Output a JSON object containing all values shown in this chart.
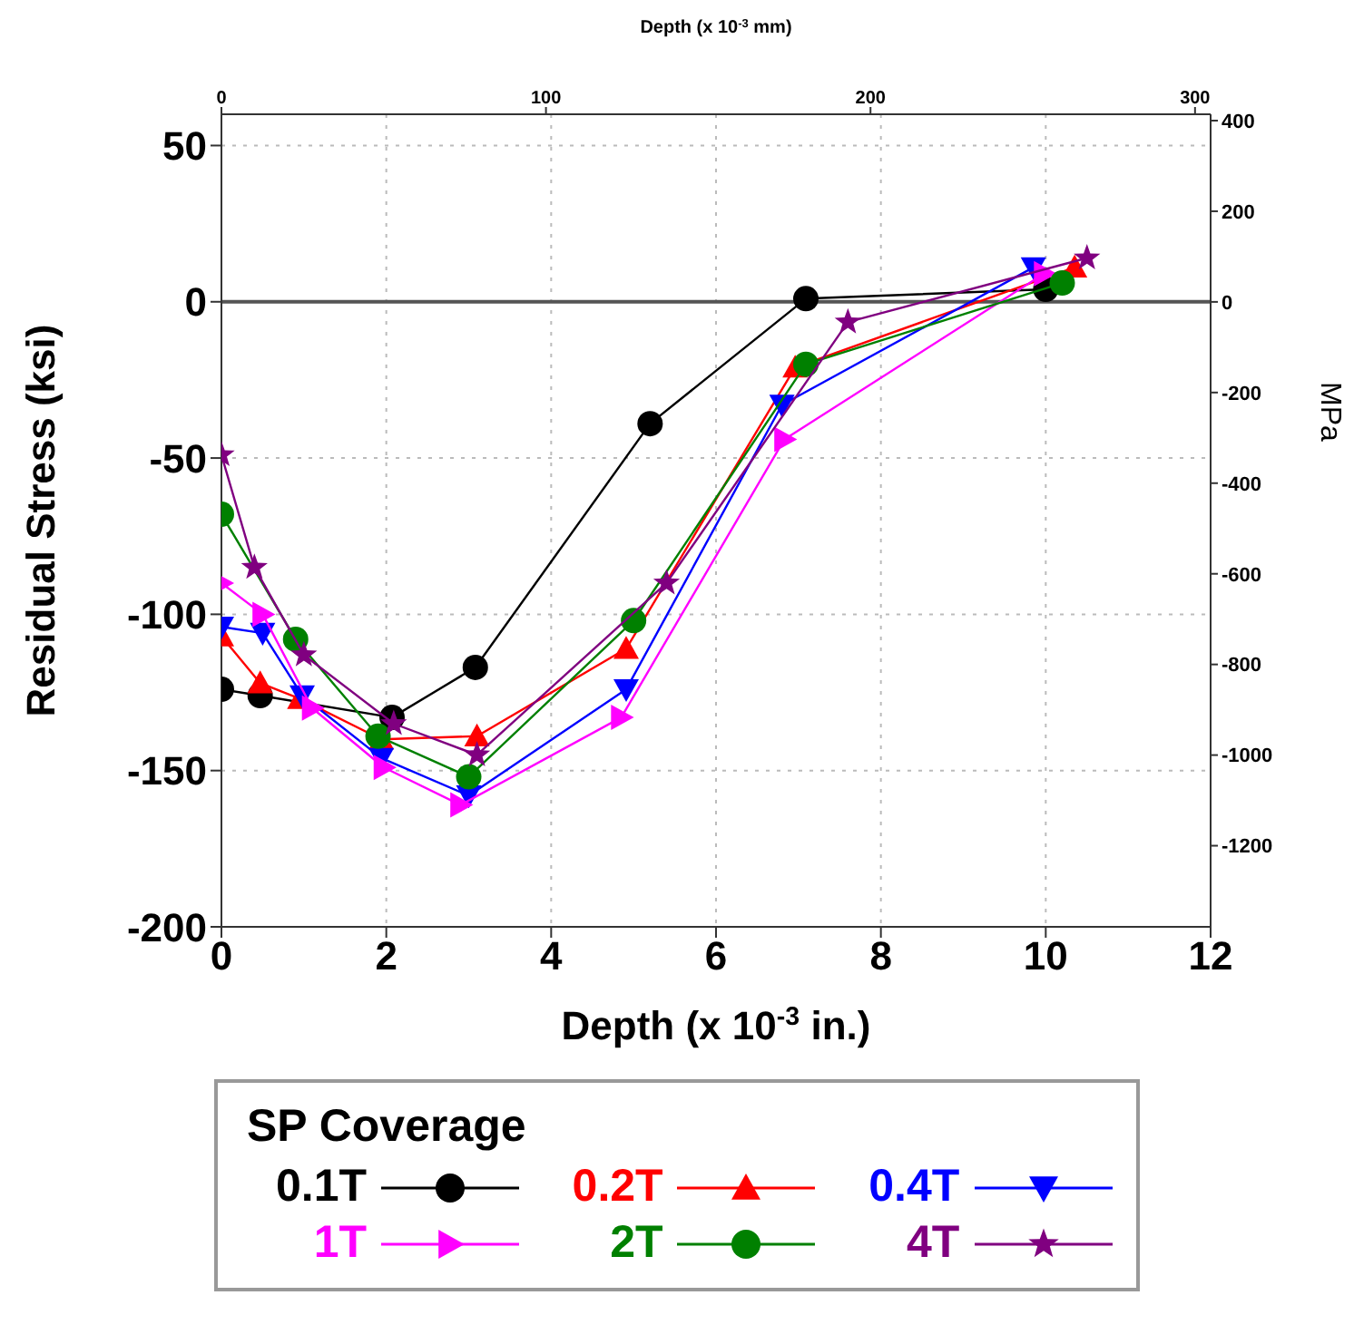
{
  "chart_data": {
    "type": "line",
    "xlabel": "Depth (x 10$^{-3}$ in.)",
    "ylabel": "Residual Stress (ksi)",
    "y2label": "MPa",
    "x2label": "Depth (x 10$^{-3}$ mm)",
    "legend_title": "SP Coverage",
    "xlim": [
      0,
      12
    ],
    "xticks": [
      0,
      2,
      4,
      6,
      8,
      10,
      12
    ],
    "ylim": [
      -200,
      60
    ],
    "yticks": [
      -200,
      -150,
      -100,
      -50,
      0,
      50
    ],
    "y2lim": [
      -1379,
      414
    ],
    "y2ticks": [
      -1200,
      -1000,
      -800,
      -600,
      -400,
      -200,
      0,
      200,
      400
    ],
    "x2lim": [
      0,
      304.8
    ],
    "x2ticks": [
      0,
      100,
      200,
      300
    ],
    "grid": true,
    "legend": "bottom",
    "line_style": "solid",
    "ref_lines": [
      {
        "axis": "y",
        "value": 0,
        "color": "#555555"
      }
    ],
    "series": [
      {
        "name": "0.1T",
        "color": "#000000",
        "marker": "circle",
        "x": [
          0,
          0.47,
          2.07,
          3.08,
          5.2,
          7.09,
          10.0
        ],
        "values": [
          -124,
          -126,
          -133,
          -117,
          -39,
          1,
          4
        ]
      },
      {
        "name": "0.2T",
        "color": "#ff0000",
        "marker": "triangle",
        "x": [
          0,
          0.47,
          0.95,
          1.94,
          3.1,
          4.91,
          6.96,
          10.35
        ],
        "values": [
          -107,
          -122,
          -127,
          -140,
          -139,
          -111,
          -21,
          11
        ]
      },
      {
        "name": "0.4T",
        "color": "#0000ff",
        "marker": "triangle-down",
        "x": [
          0,
          0.5,
          0.98,
          1.94,
          3.0,
          4.91,
          6.8,
          9.85
        ],
        "values": [
          -104,
          -106,
          -126,
          -146,
          -158,
          -124,
          -33,
          11
        ]
      },
      {
        "name": "1T",
        "color": "#ff00ff",
        "marker": "triangle-right",
        "x": [
          0,
          0.5,
          1.1,
          1.97,
          2.9,
          4.85,
          6.83,
          9.98
        ],
        "values": [
          -90,
          -100,
          -130,
          -149,
          -161,
          -133,
          -44,
          9
        ]
      },
      {
        "name": "2T",
        "color": "#008000",
        "marker": "circle",
        "x": [
          0,
          0.9,
          1.9,
          3.0,
          5.0,
          7.09,
          10.2
        ],
        "values": [
          -68,
          -108,
          -139,
          -152,
          -102,
          -20,
          6
        ]
      },
      {
        "name": "4T",
        "color": "#800080",
        "marker": "star",
        "x": [
          0,
          0.4,
          1.0,
          2.09,
          3.1,
          5.4,
          7.6,
          10.5
        ],
        "values": [
          -49,
          -85,
          -113,
          -135,
          -145,
          -90,
          -6.5,
          14
        ]
      }
    ]
  }
}
